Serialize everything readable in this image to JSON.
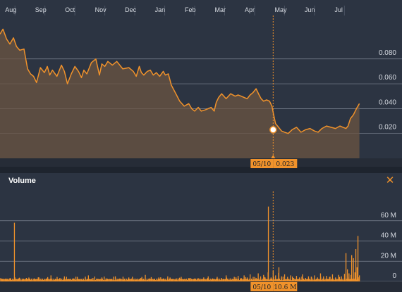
{
  "volume_panel": {
    "title": "Volume",
    "close_glyph": "✕"
  },
  "crosshair": {
    "date_label": "05/10",
    "price_label": "0.023",
    "volume_label": "10.6 M"
  },
  "colors": {
    "background": "#2c3442",
    "accent": "#f0922b",
    "grid": "#8a92a0"
  },
  "chart_data": [
    {
      "type": "area",
      "title": "",
      "xlabel": "",
      "ylabel": "",
      "x_ticks": [
        "Aug",
        "Sep",
        "Oct",
        "Nov",
        "Dec",
        "Jan",
        "Feb",
        "Mar",
        "Apr",
        "May",
        "Jun",
        "Jul"
      ],
      "y_ticks": [
        "0.020",
        "0.040",
        "0.060",
        "0.080"
      ],
      "y_tick_values": [
        0.02,
        0.04,
        0.06,
        0.08
      ],
      "ylim": [
        0.0,
        0.115
      ],
      "xlim": [
        0,
        12.15
      ],
      "grid": true,
      "highlight": {
        "x": 9.12,
        "y": 0.023
      },
      "x": [
        0.0,
        0.1,
        0.22,
        0.33,
        0.45,
        0.55,
        0.66,
        0.8,
        0.92,
        1.02,
        1.12,
        1.22,
        1.35,
        1.48,
        1.58,
        1.66,
        1.75,
        1.9,
        2.05,
        2.15,
        2.25,
        2.38,
        2.5,
        2.62,
        2.72,
        2.8,
        2.9,
        3.05,
        3.2,
        3.32,
        3.4,
        3.5,
        3.6,
        3.75,
        3.9,
        4.1,
        4.3,
        4.45,
        4.55,
        4.65,
        4.72,
        4.8,
        4.92,
        5.02,
        5.12,
        5.22,
        5.33,
        5.45,
        5.52,
        5.62,
        5.72,
        5.85,
        6.0,
        6.15,
        6.3,
        6.4,
        6.5,
        6.62,
        6.72,
        6.85,
        6.95,
        7.05,
        7.15,
        7.22,
        7.3,
        7.4,
        7.55,
        7.7,
        7.85,
        7.95,
        8.05,
        8.15,
        8.25,
        8.35,
        8.45,
        8.55,
        8.65,
        8.72,
        8.8,
        8.9,
        9.0,
        9.08,
        9.12,
        9.2,
        9.3,
        9.4,
        9.5,
        9.62,
        9.75,
        9.9,
        10.05,
        10.2,
        10.35,
        10.5,
        10.62,
        10.75,
        10.9,
        11.05,
        11.2,
        11.35,
        11.45,
        11.55,
        11.62,
        11.7,
        11.8,
        11.9,
        12.0
      ],
      "y": [
        0.1,
        0.104,
        0.096,
        0.092,
        0.097,
        0.09,
        0.087,
        0.088,
        0.072,
        0.068,
        0.066,
        0.061,
        0.073,
        0.069,
        0.074,
        0.067,
        0.071,
        0.066,
        0.075,
        0.07,
        0.06,
        0.068,
        0.074,
        0.07,
        0.065,
        0.071,
        0.068,
        0.077,
        0.08,
        0.067,
        0.076,
        0.074,
        0.078,
        0.075,
        0.078,
        0.072,
        0.073,
        0.07,
        0.066,
        0.074,
        0.069,
        0.067,
        0.07,
        0.071,
        0.067,
        0.069,
        0.066,
        0.07,
        0.067,
        0.068,
        0.059,
        0.053,
        0.046,
        0.042,
        0.044,
        0.04,
        0.038,
        0.041,
        0.038,
        0.039,
        0.04,
        0.041,
        0.038,
        0.045,
        0.049,
        0.052,
        0.048,
        0.052,
        0.05,
        0.051,
        0.05,
        0.049,
        0.048,
        0.051,
        0.053,
        0.056,
        0.051,
        0.048,
        0.046,
        0.047,
        0.046,
        0.042,
        0.037,
        0.028,
        0.025,
        0.022,
        0.021,
        0.02,
        0.023,
        0.025,
        0.021,
        0.023,
        0.024,
        0.022,
        0.021,
        0.024,
        0.026,
        0.025,
        0.024,
        0.026,
        0.025,
        0.024,
        0.026,
        0.032,
        0.035,
        0.04,
        0.044
      ]
    },
    {
      "type": "bar",
      "title": "Volume",
      "y_ticks": [
        "0",
        "20 M",
        "40 M",
        "60 M"
      ],
      "y_tick_values": [
        0,
        20,
        40,
        60
      ],
      "ylim": [
        0,
        80
      ],
      "xlim": [
        0,
        12.15
      ],
      "grid": true,
      "highlight": {
        "x": 9.12,
        "y": 10.6
      },
      "x": [
        0.08,
        0.2,
        0.35,
        0.5,
        0.62,
        0.75,
        0.88,
        1.0,
        1.15,
        1.3,
        1.42,
        1.56,
        1.7,
        1.85,
        2.0,
        2.15,
        2.3,
        2.45,
        2.58,
        2.72,
        2.85,
        2.95,
        3.1,
        3.25,
        3.4,
        3.55,
        3.7,
        3.85,
        4.0,
        4.15,
        4.3,
        4.4,
        4.55,
        4.7,
        4.85,
        5.0,
        5.15,
        5.3,
        5.45,
        5.6,
        5.75,
        5.9,
        6.05,
        6.2,
        6.35,
        6.5,
        6.65,
        6.8,
        6.95,
        7.1,
        7.25,
        7.4,
        7.55,
        7.7,
        7.82,
        7.95,
        8.05,
        8.15,
        8.25,
        8.35,
        8.45,
        8.55,
        8.62,
        8.7,
        8.8,
        8.85,
        8.95,
        9.05,
        9.12,
        9.2,
        9.3,
        9.4,
        9.5,
        9.6,
        9.7,
        9.8,
        9.9,
        10.0,
        10.1,
        10.2,
        10.3,
        10.4,
        10.5,
        10.6,
        10.7,
        10.8,
        10.9,
        11.0,
        11.1,
        11.2,
        11.3,
        11.4,
        11.5,
        11.6,
        11.65,
        11.72,
        11.8,
        11.85,
        11.92,
        12.0
      ],
      "values": [
        2.5,
        3.0,
        2.0,
        4.0,
        3.0,
        2.5,
        3.5,
        2.0,
        3.0,
        4.0,
        2.5,
        3.0,
        6.0,
        2.0,
        3.5,
        5.0,
        2.5,
        3.0,
        4.5,
        2.0,
        3.0,
        6.0,
        3.5,
        2.5,
        4.0,
        3.0,
        2.0,
        5.0,
        3.0,
        2.5,
        4.0,
        3.0,
        2.0,
        3.5,
        6.5,
        3.0,
        2.5,
        4.0,
        3.0,
        5.0,
        2.5,
        3.0,
        4.5,
        2.0,
        3.5,
        3.0,
        2.5,
        4.0,
        5.0,
        3.0,
        4.5,
        3.5,
        6.0,
        3.0,
        4.5,
        5.5,
        3.5,
        6.0,
        4.0,
        7.0,
        4.5,
        3.5,
        8.0,
        5.0,
        6.5,
        4.0,
        9.0,
        4.0,
        10.6,
        6.0,
        8.5,
        5.0,
        7.0,
        4.5,
        6.0,
        3.5,
        5.5,
        4.0,
        7.0,
        3.5,
        5.0,
        4.5,
        6.0,
        4.0,
        8.0,
        5.0,
        5.5,
        4.5,
        7.0,
        4.0,
        6.5,
        5.0,
        7.5,
        12.0,
        8.0,
        6.5,
        23.0,
        9.0,
        14.0,
        6.0
      ],
      "spikes": [
        {
          "x": 0.48,
          "value": 58
        },
        {
          "x": 8.96,
          "value": 74
        },
        {
          "x": 9.31,
          "value": 14
        },
        {
          "x": 11.55,
          "value": 28
        },
        {
          "x": 11.74,
          "value": 26
        },
        {
          "x": 11.95,
          "value": 45
        },
        {
          "x": 11.88,
          "value": 32
        }
      ]
    }
  ]
}
